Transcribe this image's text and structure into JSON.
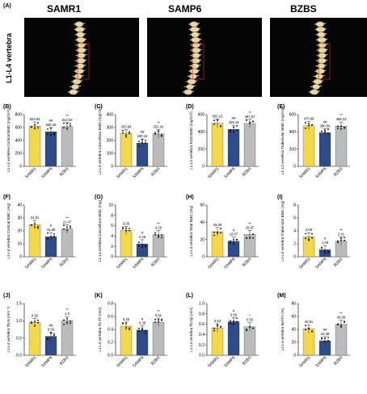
{
  "figure": {
    "top_label": "(A)",
    "groups": [
      "SAMR1",
      "SAMP6",
      "BZBS"
    ],
    "row_label": "L1-L4 vertebra",
    "colors": {
      "SAMR1": "#f2d84a",
      "SAMP6": "#2f4c8a",
      "BZBS": "#b9bbbd",
      "photo_bg": "#050505",
      "bone": "#e6d7a6"
    }
  },
  "chart_data": [
    {
      "panel": "(B)",
      "type": "bar",
      "categories": [
        "SAMR1",
        "SAMP6",
        "BZBS"
      ],
      "values": [
        623.84,
        536.46,
        613.53
      ],
      "value_labels": [
        "623.84",
        "536.46",
        "613.53"
      ],
      "sig_labels": [
        "",
        "##",
        "**"
      ],
      "ylabel": "L1-L4 vertebra Cortical BMD (mg/cm³)",
      "ylim": [
        0,
        800
      ],
      "yticks": [
        "0",
        "200",
        "400",
        "600",
        "800"
      ]
    },
    {
      "panel": "(C)",
      "type": "bar",
      "categories": [
        "SAMR1",
        "SAMP6",
        "BZBS"
      ],
      "values": [
        253.84,
        180.42,
        251.42
      ],
      "value_labels": [
        "253.84",
        "180.42",
        "251.42"
      ],
      "sig_labels": [
        "",
        "##",
        "**"
      ],
      "ylabel": "L1-L4 vertebra Cancellous BMD (mg/cm³)",
      "ylim": [
        0,
        400
      ],
      "yticks": [
        "0",
        "100",
        "200",
        "300",
        "400"
      ]
    },
    {
      "panel": "(D)",
      "type": "bar",
      "categories": [
        "SAMR1",
        "SAMP6",
        "BZBS"
      ],
      "values": [
        500.15,
        429.18,
        497.57
      ],
      "value_labels": [
        "500.15",
        "429.18",
        "497.57"
      ],
      "sig_labels": [
        "",
        "##",
        "**"
      ],
      "ylabel": "L1-L4 vertebra Total BMD (mg/cm³)",
      "ylim": [
        0,
        600
      ],
      "yticks": [
        "0",
        "200",
        "400",
        "600"
      ]
    },
    {
      "panel": "(E)",
      "type": "bar",
      "categories": [
        "SAMR1",
        "SAMP6",
        "BZBS"
      ],
      "values": [
        470.99,
        390.06,
        466.23
      ],
      "value_labels": [
        "470.99",
        "390.06",
        "466.23"
      ],
      "sig_labels": [
        "",
        "##",
        "**"
      ],
      "ylabel": "L1-L4 vertebra Trabecular BMD (mg/cm³)",
      "ylim": [
        0,
        600
      ],
      "yticks": [
        "0",
        "200",
        "400",
        "600"
      ]
    },
    {
      "panel": "(F)",
      "type": "bar",
      "categories": [
        "SAMR1",
        "SAMP6",
        "BZBS"
      ],
      "values": [
        24.91,
        15.58,
        21.47
      ],
      "value_labels": [
        "24.91",
        "15.58",
        "21.47"
      ],
      "sig_labels": [
        "",
        "#",
        "**"
      ],
      "ylabel": "L1-L4 vertebra Cortical BMC (mg)",
      "ylim": [
        0,
        40
      ],
      "yticks": [
        "0",
        "10",
        "20",
        "30",
        "40"
      ]
    },
    {
      "panel": "(G)",
      "type": "bar",
      "categories": [
        "SAMR1",
        "SAMP6",
        "BZBS"
      ],
      "values": [
        5.08,
        2.49,
        4.26
      ],
      "value_labels": [
        "5.08",
        "2.49",
        "4.26"
      ],
      "sig_labels": [
        "",
        "#",
        "**"
      ],
      "ylabel": "L1-L4 vertebra Cancellous BMC (mg)",
      "ylim": [
        0,
        10
      ],
      "yticks": [
        "0",
        "2",
        "4",
        "6",
        "8",
        "10"
      ]
    },
    {
      "panel": "(H)",
      "type": "bar",
      "categories": [
        "SAMR1",
        "SAMP6",
        "BZBS"
      ],
      "values": [
        29.09,
        18.07,
        25.87
      ],
      "value_labels": [
        "29.09",
        "18.07",
        "25.87"
      ],
      "sig_labels": [
        "",
        "#",
        "**"
      ],
      "ylabel": "L1-L4 vertebra Total BMC (mg)",
      "ylim": [
        0,
        60
      ],
      "yticks": [
        "0",
        "20",
        "40",
        "60"
      ]
    },
    {
      "panel": "(I)",
      "type": "bar",
      "categories": [
        "SAMR1",
        "SAMP6",
        "BZBS"
      ],
      "values": [
        3.08,
        1.09,
        2.41
      ],
      "value_labels": [
        "3.08",
        "1.09",
        "2.41"
      ],
      "sig_labels": [
        "",
        "#",
        "**"
      ],
      "ylabel": "L1-L4 vertebra Trabecular BMC (mg)",
      "ylim": [
        0,
        8
      ],
      "yticks": [
        "0",
        "2",
        "4",
        "6",
        "8"
      ]
    },
    {
      "panel": "(J)",
      "type": "bar",
      "categories": [
        "SAMR1",
        "SAMP6",
        "BZBS"
      ],
      "values": [
        0.95,
        0.55,
        1.0
      ],
      "value_labels": [
        "0.95",
        "0.55",
        "1.0"
      ],
      "sig_labels": [
        "",
        "##",
        "**"
      ],
      "ylabel": "L1-L4 vertebra Tb.N (mm⁻¹)",
      "ylim": [
        0,
        1.5
      ],
      "yticks": [
        "0.0",
        "0.5",
        "1.0",
        "1.5"
      ]
    },
    {
      "panel": "(K)",
      "type": "bar",
      "categories": [
        "SAMR1",
        "SAMP6",
        "BZBS"
      ],
      "values": [
        0.45,
        0.39,
        0.51
      ],
      "value_labels": [
        "0.45",
        "0.39",
        "0.51"
      ],
      "sig_labels": [
        "",
        "#",
        "**"
      ],
      "ylabel": "L1-L4 vertebra Tb.Th (mm)",
      "ylim": [
        0,
        0.8
      ],
      "yticks": [
        "0.0",
        "0.2",
        "0.4",
        "0.6",
        "0.8"
      ]
    },
    {
      "panel": "(L)",
      "type": "bar",
      "categories": [
        "SAMR1",
        "SAMP6",
        "BZBS"
      ],
      "values": [
        0.53,
        0.65,
        0.55
      ],
      "value_labels": [
        "0.53",
        "0.65",
        "0.55"
      ],
      "sig_labels": [
        "",
        "#",
        "*"
      ],
      "ylabel": "L1-L4 vertebra Tb.Sp (mm)",
      "ylim": [
        0,
        1.0
      ],
      "yticks": [
        "0.0",
        "0.2",
        "0.4",
        "0.6",
        "0.8",
        "1.0"
      ]
    },
    {
      "panel": "(M)",
      "type": "bar",
      "categories": [
        "SAMR1",
        "SAMP6",
        "BZBS"
      ],
      "values": [
        40.91,
        22.38,
        48.08
      ],
      "value_labels": [
        "40.91",
        "22.38",
        "48.08"
      ],
      "sig_labels": [
        "",
        "##",
        "**"
      ],
      "ylabel": "L1-L4 vertebra BV/TV (%)",
      "ylim": [
        0,
        80
      ],
      "yticks": [
        "0",
        "20",
        "40",
        "60",
        "80"
      ]
    }
  ]
}
